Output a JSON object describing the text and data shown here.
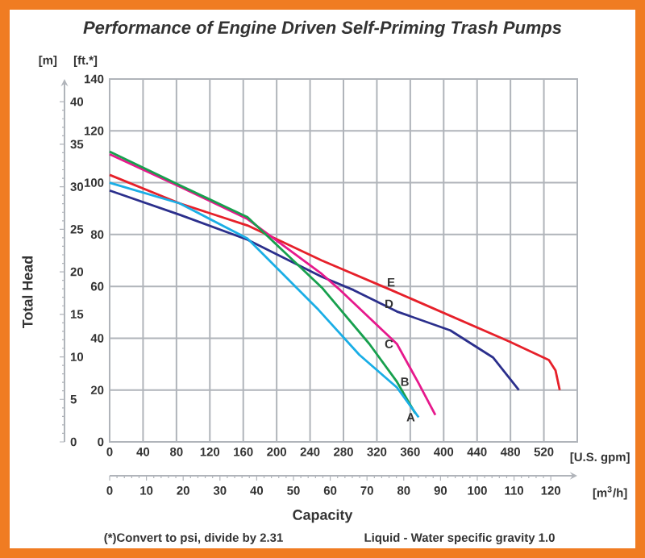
{
  "chart_data": {
    "type": "line",
    "title": "Performance of Engine Driven Self-Priming Trash Pumps",
    "xlabel": "[U.S. gpm]",
    "ylabel": "[ft.*]",
    "y2label": "[m]",
    "x2label": "[m$^{3}$/h]",
    "xlim": [
      0,
      560
    ],
    "xticks": [
      0,
      40,
      80,
      120,
      160,
      200,
      240,
      280,
      320,
      360,
      400,
      440,
      480,
      520
    ],
    "ylim": [
      0,
      140
    ],
    "yticks": [
      0,
      20,
      40,
      60,
      80,
      100,
      120,
      140
    ],
    "x2lim": [
      0,
      127.2
    ],
    "x2ticks": [
      0,
      10,
      20,
      30,
      40,
      50,
      60,
      70,
      80,
      90,
      100,
      110,
      120
    ],
    "y2lim": [
      0,
      42.67
    ],
    "y2ticks": [
      0,
      5,
      10,
      15,
      20,
      25,
      30,
      35,
      40
    ],
    "grid": true,
    "marker": "none",
    "line_style": "solid",
    "series": [
      {
        "name": "A",
        "color": "#1aaee6",
        "x": [
          0,
          84,
          165,
          250,
          299,
          344,
          370
        ],
        "values": [
          100,
          92,
          78.5,
          51,
          33.6,
          21,
          9.5
        ]
      },
      {
        "name": "B",
        "color": "#17a04e",
        "x": [
          0,
          84,
          165,
          254,
          311,
          344,
          366
        ],
        "values": [
          112,
          99,
          86.7,
          59.6,
          37.8,
          23.2,
          11
        ]
      },
      {
        "name": "C",
        "color": "#e6198c",
        "x": [
          0,
          84,
          165,
          254,
          276,
          344,
          369,
          390
        ],
        "values": [
          111,
          98.5,
          86,
          64.8,
          58.6,
          37.8,
          23.2,
          10.4
        ]
      },
      {
        "name": "D",
        "color": "#2b2f8c",
        "x": [
          0,
          84,
          165,
          254,
          292,
          344,
          408,
          459,
          490
        ],
        "values": [
          97,
          87.6,
          78,
          63.7,
          58.6,
          50.3,
          43,
          32.6,
          20
        ]
      },
      {
        "name": "E",
        "color": "#e6202a",
        "x": [
          0,
          84,
          165,
          254,
          337,
          478,
          526,
          534,
          539
        ],
        "values": [
          103,
          92,
          83.5,
          70,
          58.6,
          38.8,
          31.6,
          27.5,
          20
        ]
      }
    ],
    "annotations": [
      "Total Head",
      "Capacity",
      "(*)Convert to psi, divide by 2.31",
      "Liquid - Water specific gravity 1.0"
    ]
  }
}
